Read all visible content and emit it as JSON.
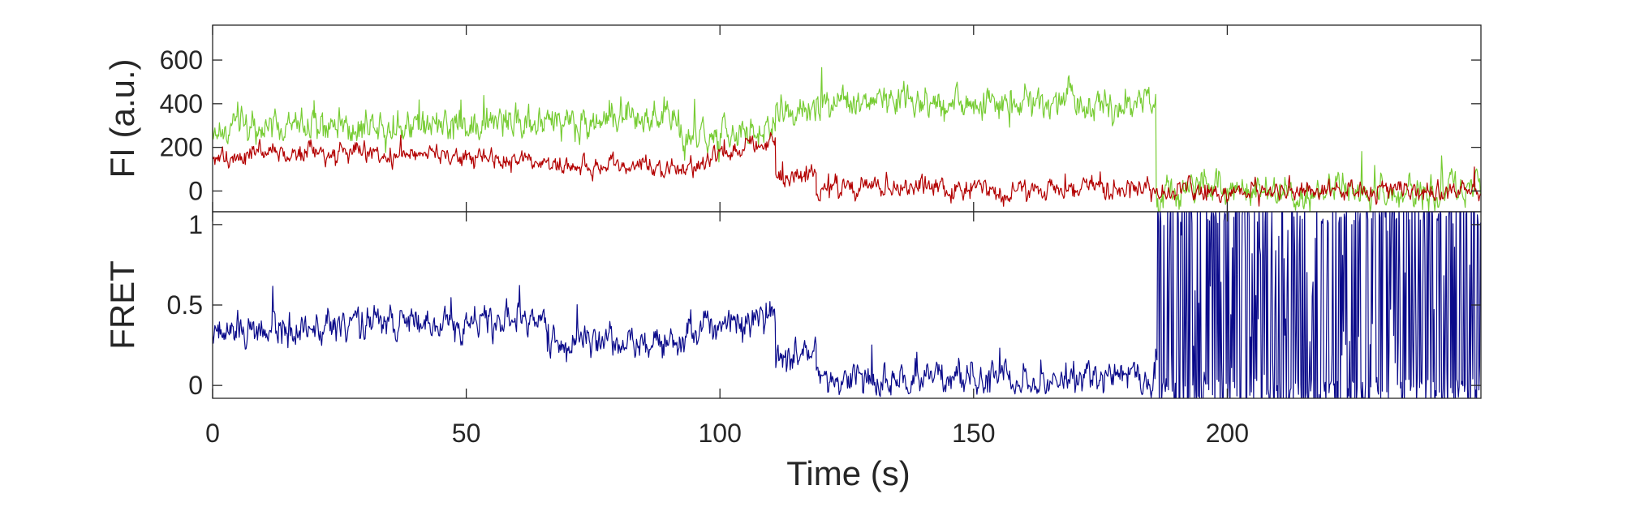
{
  "chart_data": {
    "type": "line",
    "xlabel": "Time (s)",
    "xlim": [
      0,
      250
    ],
    "xticks": [
      0,
      50,
      100,
      150,
      200
    ],
    "panels": [
      {
        "id": "fluorescence",
        "ylabel": "FI (a.u.)",
        "ylim": [
          -95,
          760
        ],
        "yticks": [
          0,
          200,
          400,
          600
        ],
        "series": [
          {
            "color": "#77cc33",
            "noise": 75,
            "segments": [
              {
                "x0": 0,
                "x1": 20,
                "y0": 290,
                "y1": 300
              },
              {
                "x0": 20,
                "x1": 65,
                "y0": 300,
                "y1": 310
              },
              {
                "x0": 65,
                "x1": 92,
                "y0": 310,
                "y1": 340
              },
              {
                "x0": 92,
                "x1": 111,
                "y0": 230,
                "y1": 290
              },
              {
                "x0": 111,
                "x1": 119,
                "y0": 380,
                "y1": 360
              },
              {
                "x0": 119,
                "x1": 186,
                "y0": 410,
                "y1": 410
              },
              {
                "x0": 186,
                "x1": 250,
                "y0": 0,
                "y1": 0
              }
            ]
          },
          {
            "color": "#b30000",
            "noise": 45,
            "segments": [
              {
                "x0": 0,
                "x1": 20,
                "y0": 150,
                "y1": 180
              },
              {
                "x0": 20,
                "x1": 65,
                "y0": 180,
                "y1": 140
              },
              {
                "x0": 65,
                "x1": 92,
                "y0": 110,
                "y1": 110
              },
              {
                "x0": 92,
                "x1": 111,
                "y0": 110,
                "y1": 220
              },
              {
                "x0": 111,
                "x1": 119,
                "y0": 60,
                "y1": 90
              },
              {
                "x0": 119,
                "x1": 186,
                "y0": 10,
                "y1": 10
              },
              {
                "x0": 186,
                "x1": 250,
                "y0": 0,
                "y1": 0
              }
            ]
          }
        ]
      },
      {
        "id": "fret",
        "ylabel": "FRET",
        "ylim": [
          -0.08,
          1.08
        ],
        "yticks": [
          0,
          0.5,
          1
        ],
        "series": [
          {
            "color": "#0a0a8a",
            "noise": 0.1,
            "segments": [
              {
                "x0": 0,
                "x1": 20,
                "y0": 0.33,
                "y1": 0.35
              },
              {
                "x0": 20,
                "x1": 66,
                "y0": 0.38,
                "y1": 0.4
              },
              {
                "x0": 66,
                "x1": 92,
                "y0": 0.28,
                "y1": 0.3
              },
              {
                "x0": 92,
                "x1": 111,
                "y0": 0.3,
                "y1": 0.48
              },
              {
                "x0": 111,
                "x1": 119,
                "y0": 0.12,
                "y1": 0.25
              },
              {
                "x0": 119,
                "x1": 186,
                "y0": 0.03,
                "y1": 0.04
              },
              {
                "x0": 186,
                "x1": 250,
                "y0": 0.5,
                "y1": 0.5,
                "erratic": true
              }
            ]
          }
        ]
      }
    ]
  }
}
